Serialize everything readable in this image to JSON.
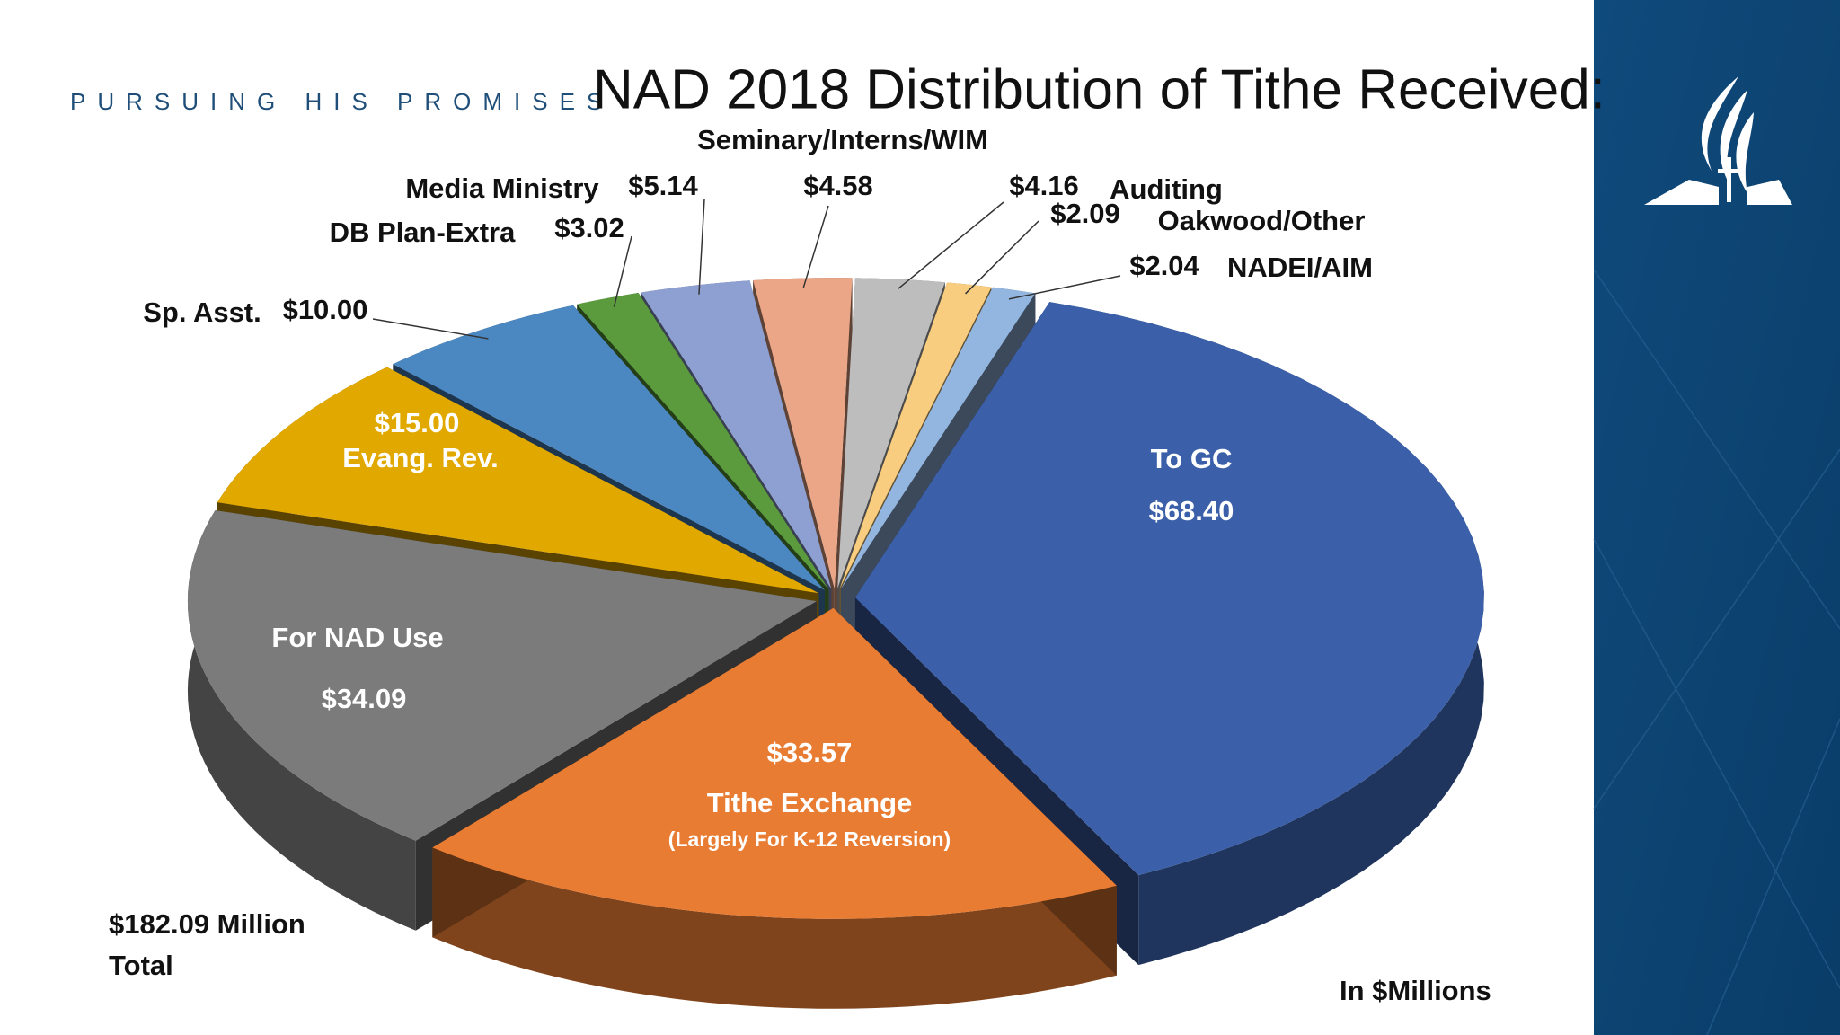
{
  "header": {
    "tagline": "PURSUING HIS PROMISES"
  },
  "chart_data": {
    "type": "pie3d",
    "title": "NAD 2018 Distribution of Tithe Received:",
    "categories": [
      "To GC",
      "Tithe Exchange",
      "For NAD Use",
      "Evang. Rev.",
      "Sp. Asst.",
      "DB Plan-Extra",
      "Media Ministry",
      "Seminary/Interns/WIM",
      "Auditing",
      "Oakwood/Other",
      "NADEI/AIM"
    ],
    "values": [
      68.4,
      33.57,
      34.09,
      15.0,
      10.0,
      3.02,
      5.14,
      4.58,
      4.16,
      2.09,
      2.04
    ],
    "value_labels": [
      "$68.40",
      "$33.57",
      "$34.09",
      "$15.00",
      "$10.00",
      "$3.02",
      "$5.14",
      "$4.58",
      "$4.16",
      "$2.09",
      "$2.04"
    ],
    "colors": [
      "#3b60a9",
      "#e97c33",
      "#7b7b7b",
      "#e1a800",
      "#4b87c0",
      "#5b9a3d",
      "#8ea0d2",
      "#eba687",
      "#bdbdbd",
      "#f8cd7f",
      "#93b6e1"
    ],
    "annotations": [
      "(Largely For K-12 Reversion)",
      "$182.09 Million",
      "Total",
      "In $Millions"
    ]
  }
}
